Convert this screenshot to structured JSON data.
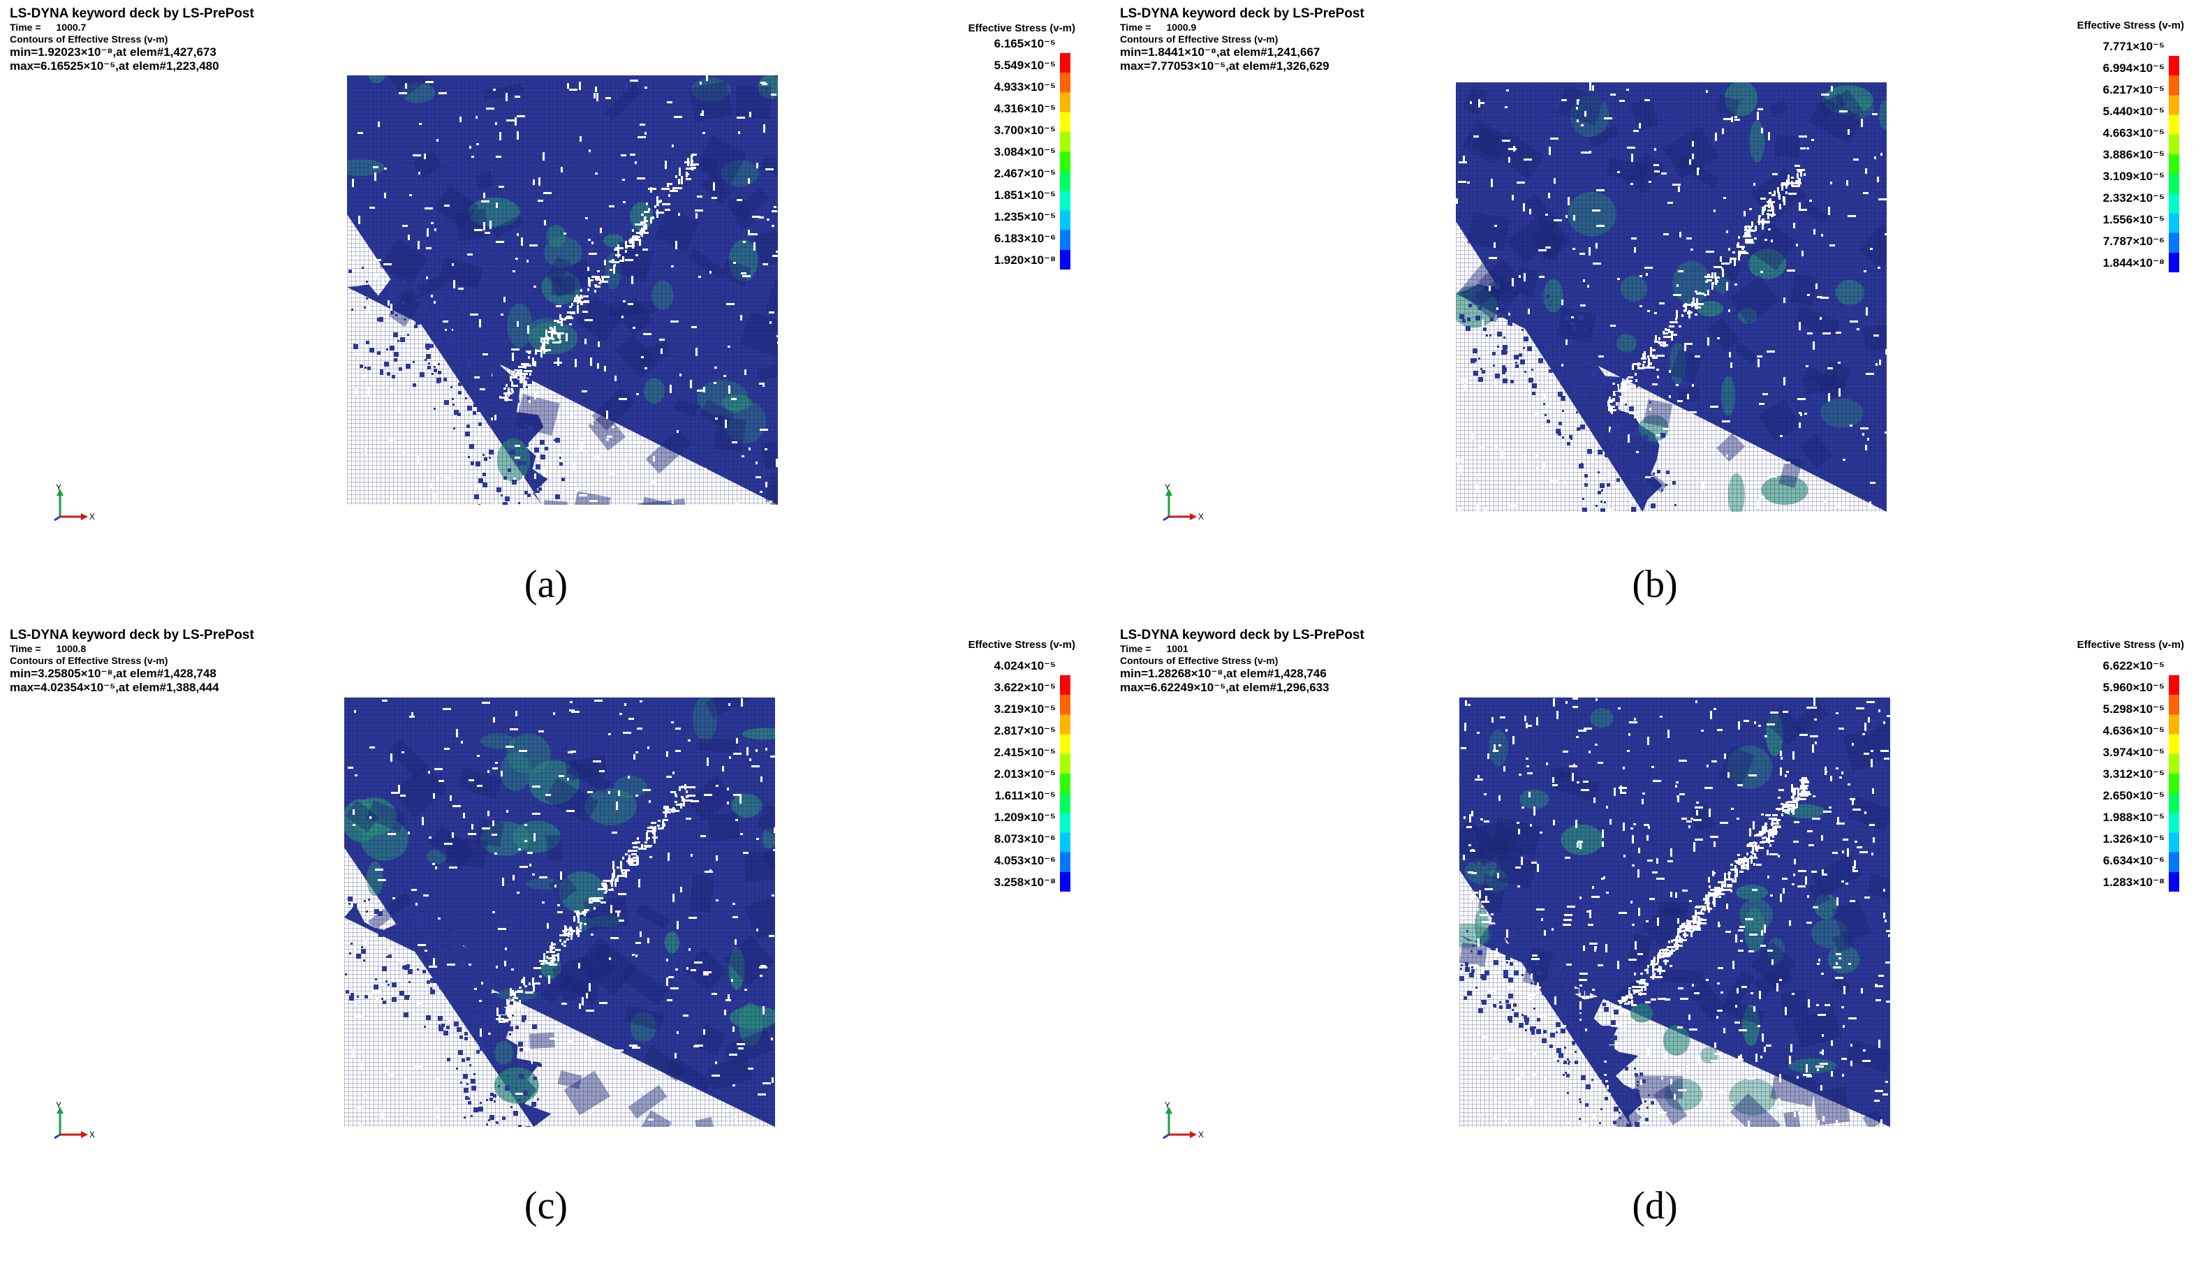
{
  "colors": {
    "mesh_base": "#2b3795",
    "mesh_line": "#0e1a5c",
    "mesh_green": "#2d8f7b",
    "void": "#ffffff",
    "scale": [
      "#0000ff",
      "#0078ff",
      "#00c8ff",
      "#00ffc8",
      "#00ff5a",
      "#30ff00",
      "#a8ff00",
      "#ffff00",
      "#ffb400",
      "#ff6400",
      "#ff0000"
    ]
  },
  "panels": [
    {
      "id": "a",
      "header": {
        "title": "LS-DYNA keyword deck by LS-PrePost",
        "time_label": "Time =",
        "time_value": "1000.7",
        "contours": "Contours of Effective Stress (v-m)",
        "min": "min=1.92023×10⁻⁸,at elem#1,427,673",
        "max": "max=6.16525×10⁻⁵,at elem#1,223,480"
      },
      "legend": {
        "title": "Effective Stress (v-m)",
        "labels": [
          "6.165×10⁻⁵",
          "5.549×10⁻⁵",
          "4.933×10⁻⁵",
          "4.316×10⁻⁵",
          "3.700×10⁻⁵",
          "3.084×10⁻⁵",
          "2.467×10⁻⁵",
          "1.851×10⁻⁵",
          "1.235×10⁻⁵",
          "6.183×10⁻⁶",
          "1.920×10⁻⁸"
        ]
      },
      "axes": {
        "y": "Y",
        "x": "X"
      },
      "caption": "(a)"
    },
    {
      "id": "b",
      "header": {
        "title": "LS-DYNA keyword deck by LS-PrePost",
        "time_label": "Time =",
        "time_value": "1000.9",
        "contours": "Contours of Effective Stress (v-m)",
        "min": "min=1.8441×10⁻⁸,at elem#1,241,667",
        "max": "max=7.77053×10⁻⁵,at elem#1,326,629"
      },
      "legend": {
        "title": "Effective Stress (v-m)",
        "labels": [
          "7.771×10⁻⁵",
          "6.994×10⁻⁵",
          "6.217×10⁻⁵",
          "5.440×10⁻⁵",
          "4.663×10⁻⁵",
          "3.886×10⁻⁵",
          "3.109×10⁻⁵",
          "2.332×10⁻⁵",
          "1.556×10⁻⁵",
          "7.787×10⁻⁶",
          "1.844×10⁻⁸"
        ]
      },
      "axes": {
        "y": "Y",
        "x": "X"
      },
      "caption": "(b)"
    },
    {
      "id": "c",
      "header": {
        "title": "LS-DYNA keyword deck by LS-PrePost",
        "time_label": "Time =",
        "time_value": "1000.8",
        "contours": "Contours of Effective Stress (v-m)",
        "min": "min=3.25805×10⁻⁸,at elem#1,428,748",
        "max": "max=4.02354×10⁻⁵,at elem#1,388,444"
      },
      "legend": {
        "title": "Effective Stress (v-m)",
        "labels": [
          "4.024×10⁻⁵",
          "3.622×10⁻⁵",
          "3.219×10⁻⁵",
          "2.817×10⁻⁵",
          "2.415×10⁻⁵",
          "2.013×10⁻⁵",
          "1.611×10⁻⁵",
          "1.209×10⁻⁵",
          "8.073×10⁻⁶",
          "4.053×10⁻⁶",
          "3.258×10⁻⁸"
        ]
      },
      "axes": {
        "y": "Y",
        "x": "X"
      },
      "caption": "(c)"
    },
    {
      "id": "d",
      "header": {
        "title": "LS-DYNA keyword deck by LS-PrePost",
        "time_label": "Time =",
        "time_value": "1001",
        "contours": "Contours of Effective Stress (v-m)",
        "min": "min=1.28268×10⁻⁸,at elem#1,428,746",
        "max": "max=6.62249×10⁻⁵,at elem#1,296,633"
      },
      "legend": {
        "title": "Effective Stress (v-m)",
        "labels": [
          "6.622×10⁻⁵",
          "5.960×10⁻⁵",
          "5.298×10⁻⁵",
          "4.636×10⁻⁵",
          "3.974×10⁻⁵",
          "3.312×10⁻⁵",
          "2.650×10⁻⁵",
          "1.988×10⁻⁵",
          "1.326×10⁻⁵",
          "6.634×10⁻⁶",
          "1.283×10⁻⁸"
        ]
      },
      "axes": {
        "y": "Y",
        "x": "X"
      },
      "caption": "(d)"
    }
  ]
}
